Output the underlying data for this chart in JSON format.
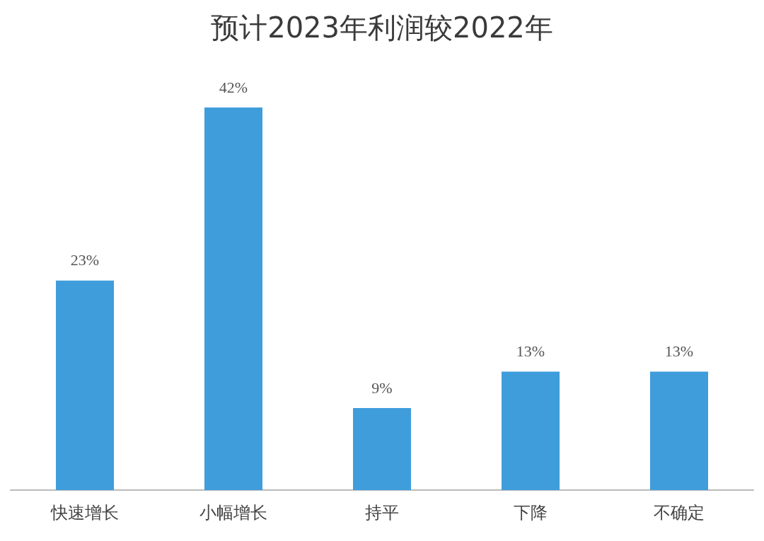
{
  "chart_data": {
    "type": "bar",
    "title": "预计2023年利润较2022年",
    "categories": [
      "快速增长",
      "小幅增长",
      "持平",
      "下降",
      "不确定"
    ],
    "values": [
      23,
      42,
      9,
      13,
      13
    ],
    "value_labels": [
      "23%",
      "42%",
      "9%",
      "13%",
      "13%"
    ],
    "color": "#3f9ddb"
  }
}
